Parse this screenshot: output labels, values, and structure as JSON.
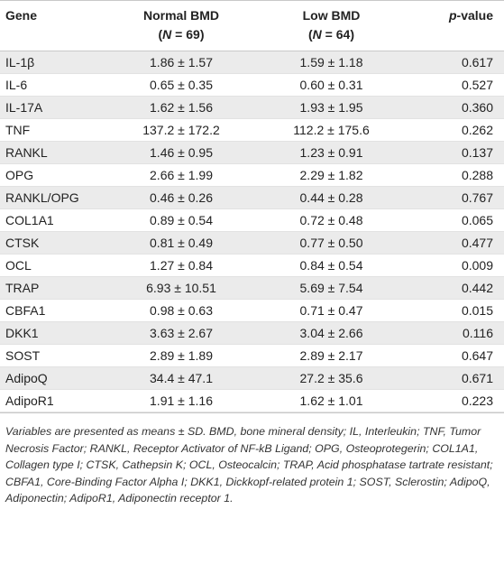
{
  "table": {
    "headers": {
      "gene": "Gene",
      "normal": "Normal BMD",
      "normal_n": "(N = 69)",
      "low": "Low BMD",
      "low_n": "(N = 64)",
      "p": "p-value"
    },
    "rows": [
      {
        "gene": "IL-1β",
        "normal": "1.86 ± 1.57",
        "low": "1.59 ± 1.18",
        "p": "0.617"
      },
      {
        "gene": "IL-6",
        "normal": "0.65 ± 0.35",
        "low": "0.60 ± 0.31",
        "p": "0.527"
      },
      {
        "gene": "IL-17A",
        "normal": "1.62 ± 1.56",
        "low": "1.93 ± 1.95",
        "p": "0.360"
      },
      {
        "gene": "TNF",
        "normal": "137.2 ± 172.2",
        "low": "112.2 ± 175.6",
        "p": "0.262"
      },
      {
        "gene": "RANKL",
        "normal": "1.46 ± 0.95",
        "low": "1.23 ± 0.91",
        "p": "0.137"
      },
      {
        "gene": "OPG",
        "normal": "2.66 ± 1.99",
        "low": "2.29 ± 1.82",
        "p": "0.288"
      },
      {
        "gene": "RANKL/OPG",
        "normal": "0.46 ± 0.26",
        "low": "0.44 ± 0.28",
        "p": "0.767"
      },
      {
        "gene": "COL1A1",
        "normal": "0.89 ± 0.54",
        "low": "0.72 ± 0.48",
        "p": "0.065"
      },
      {
        "gene": "CTSK",
        "normal": "0.81 ± 0.49",
        "low": "0.77 ± 0.50",
        "p": "0.477"
      },
      {
        "gene": "OCL",
        "normal": "1.27 ± 0.84",
        "low": "0.84 ± 0.54",
        "p": "0.009"
      },
      {
        "gene": "TRAP",
        "normal": "6.93 ± 10.51",
        "low": "5.69 ± 7.54",
        "p": "0.442"
      },
      {
        "gene": "CBFA1",
        "normal": "0.98 ± 0.63",
        "low": "0.71 ± 0.47",
        "p": "0.015"
      },
      {
        "gene": "DKK1",
        "normal": "3.63 ± 2.67",
        "low": "3.04 ± 2.66",
        "p": "0.116"
      },
      {
        "gene": "SOST",
        "normal": "2.89 ± 1.89",
        "low": "2.89 ± 2.17",
        "p": "0.647"
      },
      {
        "gene": "AdipoQ",
        "normal": "34.4 ± 47.1",
        "low": "27.2 ± 35.6",
        "p": "0.671"
      },
      {
        "gene": "AdipoR1",
        "normal": "1.91 ± 1.16",
        "low": "1.62 ± 1.01",
        "p": "0.223"
      }
    ]
  },
  "footnote": "Variables are presented as means ± SD. BMD, bone mineral density; IL, Interleukin; TNF, Tumor Necrosis Factor; RANKL, Receptor Activator of NF-kB Ligand; OPG, Osteoprotegerin; COL1A1, Collagen type I; CTSK, Cathepsin K; OCL, Osteocalcin; TRAP, Acid phosphatase tartrate resistant; CBFA1, Core-Binding Factor Alpha I; DKK1, Dickkopf-related protein 1; SOST, Sclerostin; AdipoQ, Adiponectin; AdipoR1, Adiponectin receptor 1."
}
